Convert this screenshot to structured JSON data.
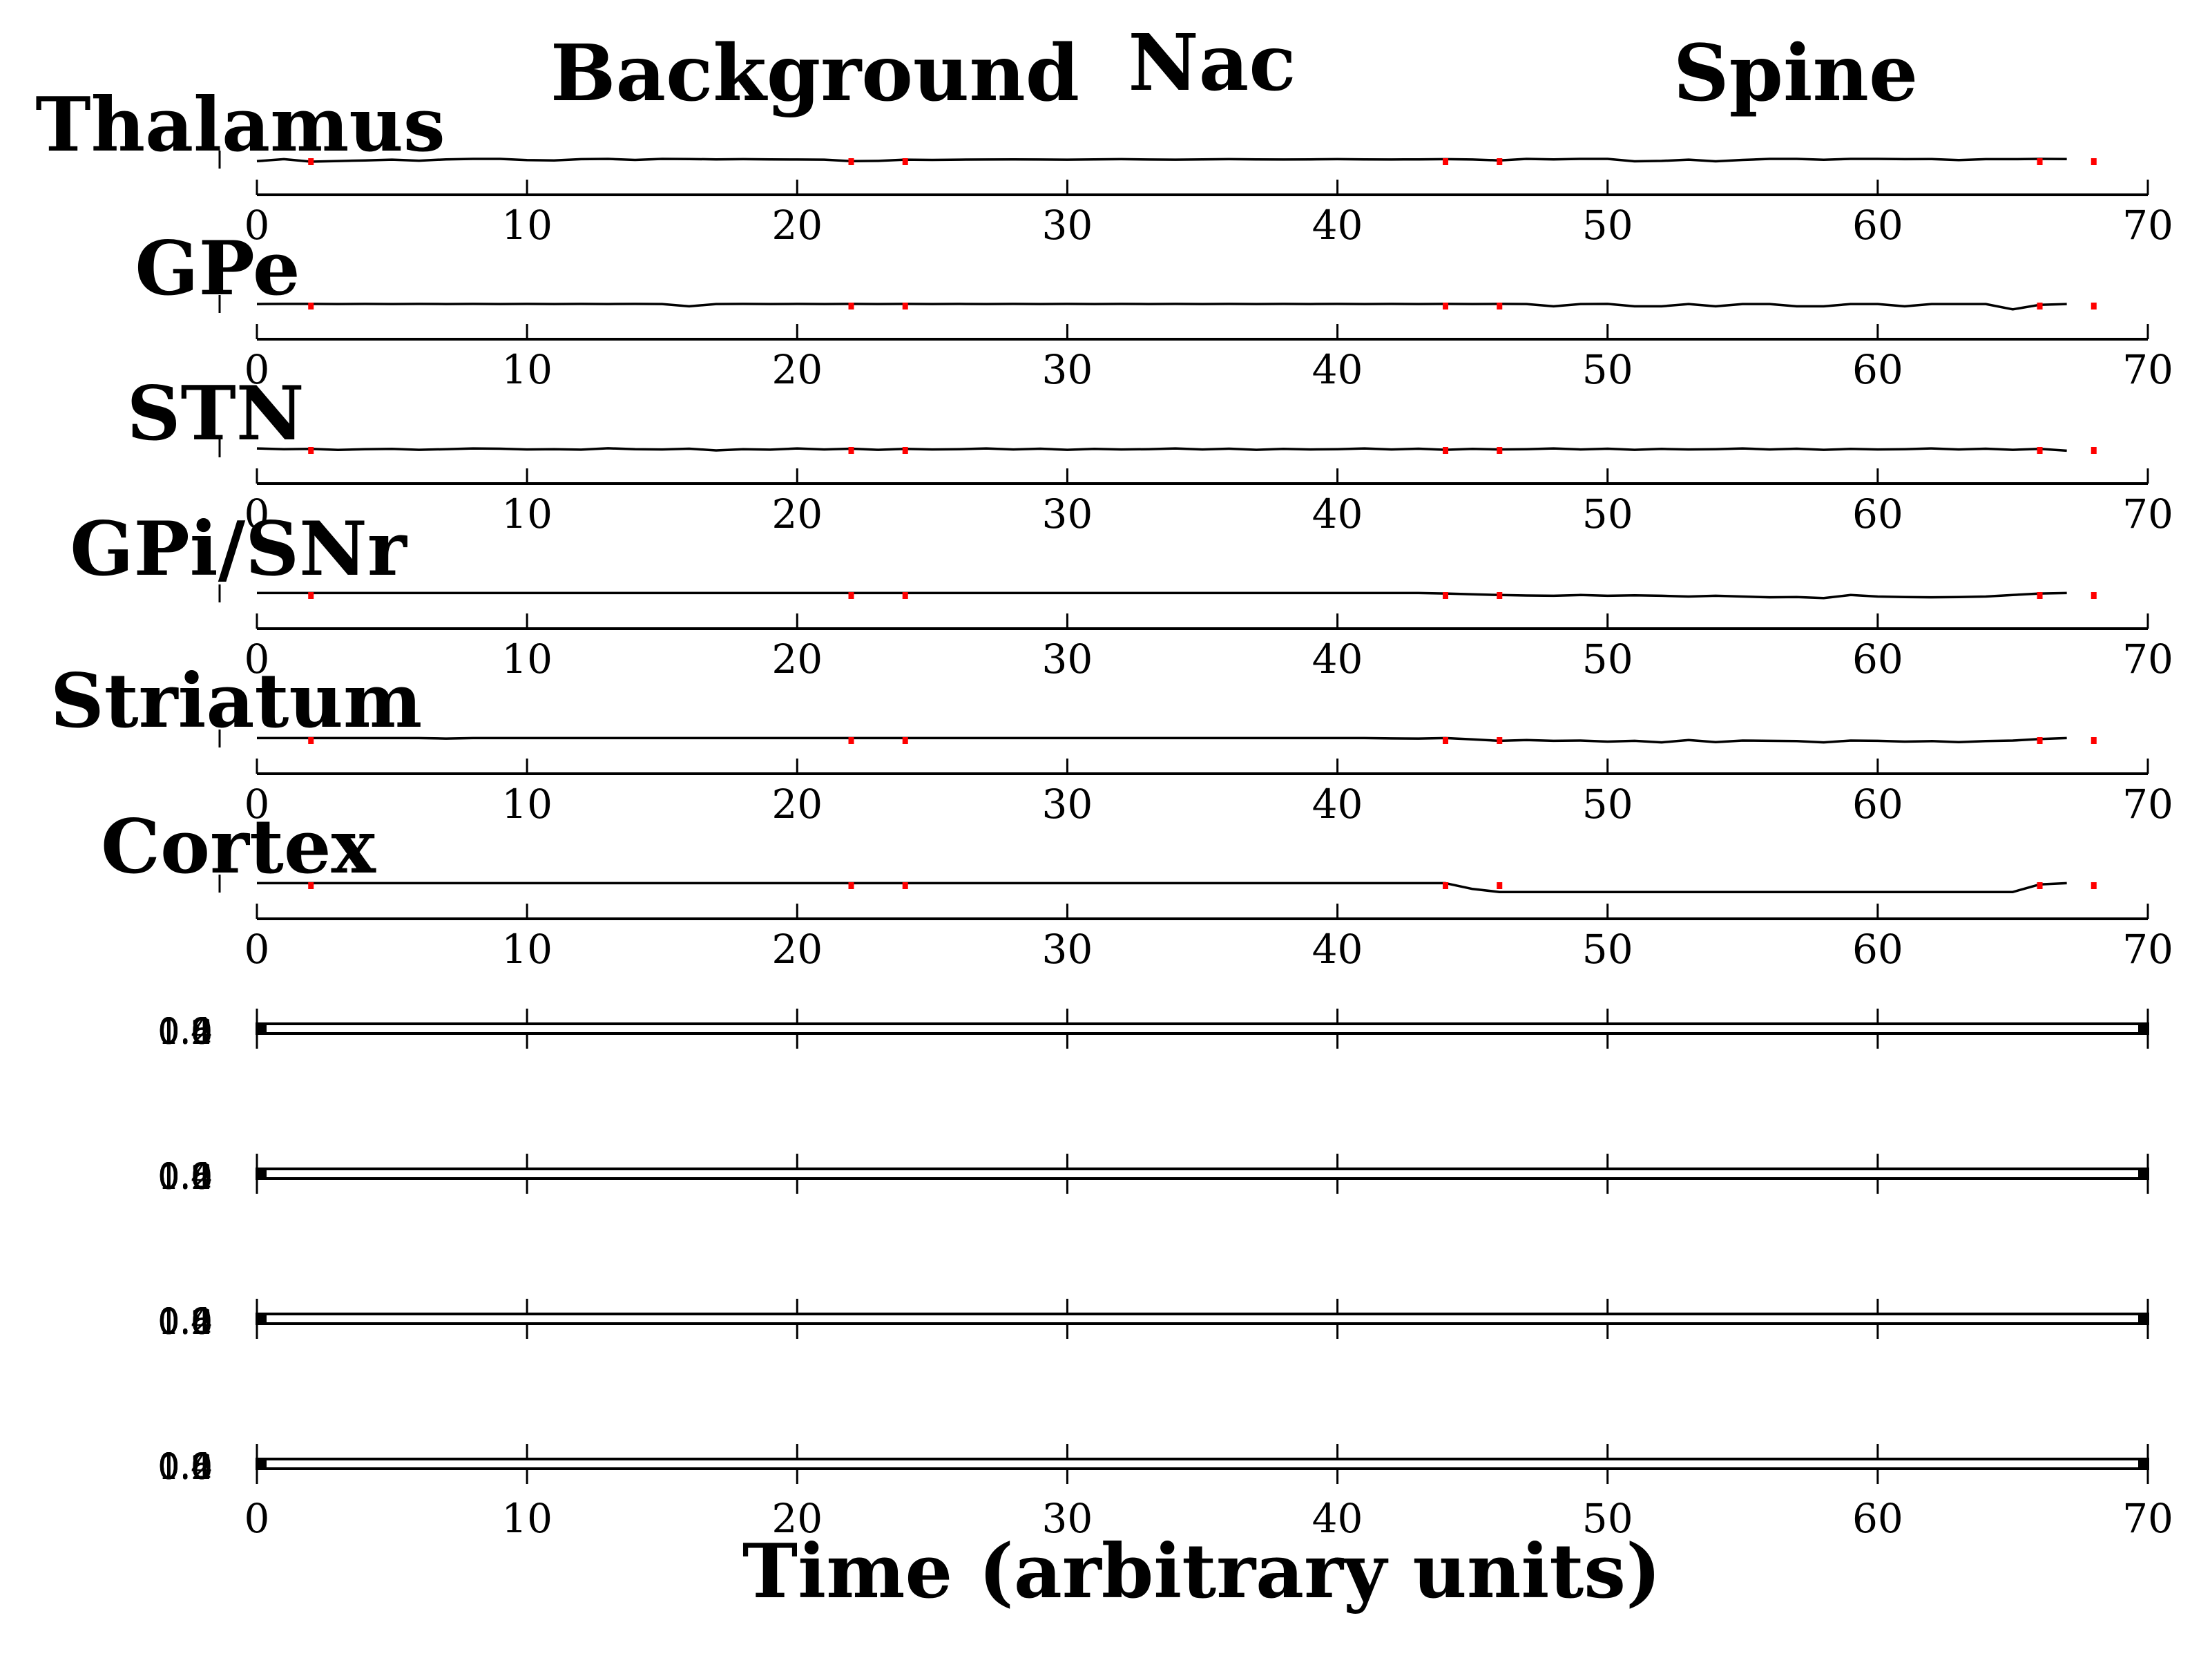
{
  "figure": {
    "phase_labels": [
      "Background",
      "Nac",
      "Spine"
    ],
    "xlabel": "Time (arbitrary units)"
  },
  "chart_data": {
    "type": "line",
    "xlim": [
      0,
      70
    ],
    "x_ticks": [
      0,
      10,
      20,
      30,
      40,
      50,
      60,
      70
    ],
    "colors": {
      "trace": "#000000",
      "marker": "#ff0000"
    },
    "marker_times": [
      2,
      22,
      24,
      44,
      46,
      66,
      68
    ],
    "grid": false,
    "panels": [
      {
        "name": "Thalamus",
        "values": [
          0.85,
          0.98,
          0.82,
          0.86,
          0.9,
          0.95,
          0.88,
          0.97,
          1.0,
          1.0,
          0.92,
          0.9,
          0.98,
          1.0,
          0.93,
          1.0,
          0.99,
          0.97,
          0.98,
          0.97,
          0.96,
          0.95,
          0.85,
          0.87,
          0.95,
          0.93,
          0.95,
          0.96,
          0.97,
          0.96,
          0.95,
          0.97,
          0.98,
          0.96,
          0.95,
          0.97,
          0.98,
          0.97,
          0.96,
          0.97,
          0.98,
          0.97,
          0.96,
          0.97,
          0.98,
          0.96,
          0.9,
          1.0,
          0.97,
          1.0,
          1.0,
          0.84,
          0.87,
          0.95,
          0.84,
          0.93,
          1.0,
          1.0,
          0.94,
          1.0,
          1.0,
          0.98,
          0.99,
          0.92,
          0.98,
          0.98,
          1.0,
          0.99
        ]
      },
      {
        "name": "GPe",
        "values": [
          0.95,
          0.96,
          0.96,
          0.95,
          0.96,
          0.95,
          0.96,
          0.95,
          0.96,
          0.95,
          0.96,
          0.95,
          0.96,
          0.95,
          0.96,
          0.95,
          0.8,
          0.95,
          0.96,
          0.95,
          0.96,
          0.95,
          0.96,
          0.95,
          0.96,
          0.95,
          0.96,
          0.95,
          0.96,
          0.95,
          0.96,
          0.95,
          0.96,
          0.95,
          0.96,
          0.95,
          0.96,
          0.95,
          0.96,
          0.95,
          0.96,
          0.95,
          0.96,
          0.95,
          0.96,
          0.95,
          0.96,
          0.95,
          0.8,
          0.95,
          0.96,
          0.8,
          0.8,
          0.95,
          0.8,
          0.95,
          0.95,
          0.8,
          0.8,
          0.95,
          0.95,
          0.8,
          0.95,
          0.95,
          0.95,
          0.6,
          0.9,
          0.95
        ]
      },
      {
        "name": "STN",
        "values": [
          0.95,
          0.9,
          0.92,
          0.85,
          0.9,
          0.92,
          0.86,
          0.9,
          0.95,
          0.93,
          0.88,
          0.9,
          0.87,
          0.96,
          0.9,
          0.88,
          0.93,
          0.82,
          0.9,
          0.87,
          0.95,
          0.88,
          0.93,
          0.86,
          0.92,
          0.88,
          0.9,
          0.95,
          0.88,
          0.93,
          0.86,
          0.92,
          0.88,
          0.9,
          0.95,
          0.88,
          0.93,
          0.86,
          0.92,
          0.88,
          0.9,
          0.95,
          0.88,
          0.93,
          0.86,
          0.92,
          0.88,
          0.9,
          0.95,
          0.88,
          0.93,
          0.86,
          0.92,
          0.88,
          0.9,
          0.95,
          0.88,
          0.93,
          0.86,
          0.92,
          0.88,
          0.9,
          0.95,
          0.88,
          0.93,
          0.86,
          0.92,
          0.8
        ]
      },
      {
        "name": "GPi/SNr",
        "values": [
          0.98,
          0.98,
          0.98,
          0.98,
          0.98,
          0.98,
          0.98,
          0.98,
          0.98,
          0.98,
          0.98,
          0.98,
          0.98,
          0.98,
          0.98,
          0.98,
          0.98,
          0.98,
          0.98,
          0.98,
          0.98,
          0.98,
          0.98,
          0.98,
          0.98,
          0.98,
          0.98,
          0.98,
          0.98,
          0.98,
          0.98,
          0.98,
          0.98,
          0.98,
          0.98,
          0.98,
          0.98,
          0.98,
          0.98,
          0.98,
          0.98,
          0.98,
          0.98,
          0.98,
          0.95,
          0.9,
          0.85,
          0.82,
          0.8,
          0.85,
          0.8,
          0.83,
          0.8,
          0.75,
          0.8,
          0.75,
          0.7,
          0.72,
          0.65,
          0.85,
          0.75,
          0.72,
          0.7,
          0.72,
          0.75,
          0.85,
          0.95,
          0.98
        ]
      },
      {
        "name": "Striatum",
        "values": [
          0.98,
          0.98,
          0.98,
          0.98,
          0.98,
          0.98,
          0.98,
          0.95,
          0.98,
          0.98,
          0.98,
          0.98,
          0.98,
          0.98,
          0.98,
          0.98,
          0.98,
          0.98,
          0.98,
          0.98,
          0.98,
          0.98,
          0.98,
          0.98,
          0.98,
          0.98,
          0.98,
          0.98,
          0.98,
          0.98,
          0.98,
          0.98,
          0.98,
          0.98,
          0.98,
          0.98,
          0.98,
          0.98,
          0.98,
          0.98,
          0.98,
          0.98,
          0.96,
          0.95,
          0.98,
          0.9,
          0.8,
          0.85,
          0.8,
          0.82,
          0.75,
          0.8,
          0.7,
          0.85,
          0.72,
          0.82,
          0.8,
          0.78,
          0.7,
          0.82,
          0.8,
          0.75,
          0.78,
          0.72,
          0.78,
          0.82,
          0.92,
          0.98
        ]
      },
      {
        "name": "Cortex",
        "values": [
          0.98,
          0.98,
          0.98,
          0.98,
          0.98,
          0.98,
          0.98,
          0.98,
          0.98,
          0.98,
          0.98,
          0.98,
          0.98,
          0.98,
          0.98,
          0.98,
          0.98,
          0.98,
          0.98,
          0.98,
          0.98,
          0.98,
          0.98,
          0.98,
          0.98,
          0.98,
          0.98,
          0.98,
          0.98,
          0.98,
          0.98,
          0.98,
          0.98,
          0.98,
          0.98,
          0.98,
          0.98,
          0.98,
          0.98,
          0.98,
          0.98,
          0.98,
          0.98,
          0.98,
          0.98,
          0.6,
          0.4,
          0.4,
          0.4,
          0.4,
          0.4,
          0.4,
          0.4,
          0.4,
          0.4,
          0.4,
          0.4,
          0.4,
          0.4,
          0.4,
          0.4,
          0.4,
          0.4,
          0.4,
          0.4,
          0.4,
          0.9,
          0.98
        ]
      }
    ],
    "flat_panels": [
      {
        "ytick_labels": [
          "0.0",
          "0.2",
          "0.4",
          "0.6",
          "0.8",
          "1.0"
        ]
      },
      {
        "ytick_labels": [
          "0.0",
          "0.2",
          "0.4",
          "0.6",
          "0.8",
          "1.0"
        ]
      },
      {
        "ytick_labels": [
          "0.0",
          "0.2",
          "0.4",
          "0.6",
          "0.8",
          "1.0"
        ]
      },
      {
        "ytick_labels": [
          "0.0",
          "0.2",
          "0.4",
          "0.6",
          "0.8",
          "1.0"
        ]
      }
    ]
  }
}
